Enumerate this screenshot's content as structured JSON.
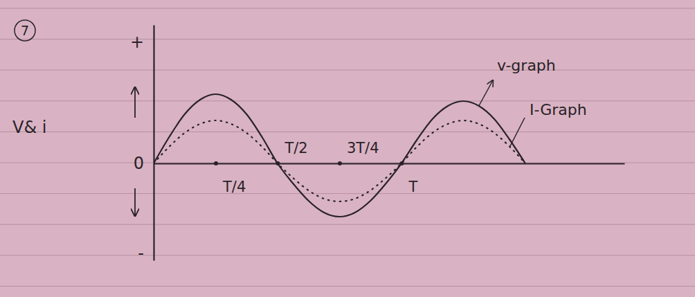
{
  "chart_data": {
    "type": "line",
    "y_label": "V& i",
    "annotations": [
      "7"
    ],
    "x": [
      0,
      0.0625,
      0.125,
      0.1875,
      0.25,
      0.3125,
      0.375,
      0.4375,
      0.5,
      0.5625,
      0.625,
      0.6875,
      0.75,
      0.8125,
      0.875,
      0.9375,
      1,
      1.0625,
      1.125,
      1.1875,
      1.25,
      1.3125,
      1.375,
      1.4375,
      1.5
    ],
    "series": [
      {
        "name": "v-graph",
        "color": "#2a2228",
        "line_style": "solid",
        "values": [
          0,
          0.38,
          0.71,
          0.92,
          1.0,
          0.92,
          0.71,
          0.38,
          0,
          -0.29,
          -0.54,
          -0.71,
          -0.77,
          -0.71,
          -0.54,
          -0.29,
          0,
          0.34,
          0.64,
          0.83,
          0.9,
          0.83,
          0.64,
          0.34,
          0
        ]
      },
      {
        "name": "I-Graph",
        "color": "#2a2228",
        "line_style": "dotted",
        "values": [
          0,
          0.24,
          0.44,
          0.57,
          0.62,
          0.57,
          0.44,
          0.24,
          0,
          -0.21,
          -0.39,
          -0.51,
          -0.55,
          -0.51,
          -0.39,
          -0.21,
          0,
          0.24,
          0.44,
          0.57,
          0.62,
          0.57,
          0.44,
          0.24,
          0
        ]
      }
    ],
    "xlim": [
      0,
      1.9
    ],
    "xticks": [
      {
        "value": 0.25,
        "label": "T/4"
      },
      {
        "value": 0.5,
        "label": "T/2"
      },
      {
        "value": 0.75,
        "label": "3T/4"
      },
      {
        "value": 1,
        "label": "T"
      }
    ],
    "ylim": [
      -1.4,
      2.0
    ],
    "yticks": [
      {
        "value": -1.3,
        "label": "-"
      },
      0,
      {
        "value": 1.75,
        "label": "+"
      }
    ],
    "grid": false
  }
}
